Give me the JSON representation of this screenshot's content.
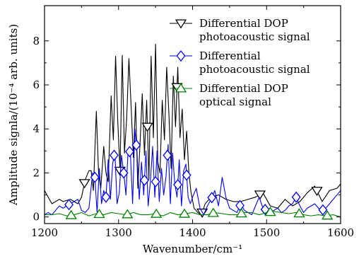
{
  "chart_data": {
    "type": "line",
    "xlabel": "Wavenumber/cm⁻¹",
    "ylabel": "Amplitude signla/(10⁻⁴ arb. units)",
    "xlim": [
      1200,
      1600
    ],
    "ylim": [
      -0.3,
      9.6
    ],
    "xticks": [
      1200,
      1300,
      1400,
      1500,
      1600
    ],
    "yticks": [
      0,
      2,
      4,
      6,
      8
    ],
    "grid": false,
    "legend": {
      "position": "top-right"
    },
    "series": [
      {
        "name": "Differential DOP photoacoustic signal",
        "legend_lines": [
          "Differential DOP",
          "photoacoustic signal"
        ],
        "color": "#000000",
        "marker": "triangle-down",
        "x": [
          1200,
          1205,
          1210,
          1215,
          1220,
          1225,
          1230,
          1235,
          1240,
          1245,
          1250,
          1255,
          1260,
          1263,
          1266,
          1270,
          1273,
          1276,
          1280,
          1283,
          1286,
          1290,
          1293,
          1296,
          1299,
          1302,
          1305,
          1308,
          1311,
          1314,
          1317,
          1320,
          1323,
          1326,
          1329,
          1332,
          1335,
          1338,
          1341,
          1344,
          1347,
          1350,
          1353,
          1356,
          1359,
          1362,
          1365,
          1368,
          1371,
          1374,
          1377,
          1380,
          1383,
          1386,
          1389,
          1392,
          1395,
          1398,
          1402,
          1407,
          1412,
          1417,
          1425,
          1435,
          1445,
          1455,
          1465,
          1475,
          1485,
          1495,
          1505,
          1515,
          1525,
          1535,
          1545,
          1555,
          1565,
          1575,
          1585,
          1595,
          1600
        ],
        "y": [
          1.2,
          0.9,
          0.6,
          0.7,
          0.8,
          0.7,
          0.75,
          0.8,
          0.7,
          0.6,
          0.9,
          1.7,
          2.1,
          2.1,
          1.2,
          4.8,
          2.0,
          1.3,
          3.2,
          2.0,
          1.6,
          5.5,
          3.5,
          7.3,
          4.3,
          2.1,
          7.35,
          2.9,
          4.5,
          7.2,
          5.0,
          2.7,
          5.2,
          1.3,
          3.3,
          5.6,
          2.8,
          5.3,
          1.7,
          7.3,
          3.6,
          7.85,
          2.5,
          2.0,
          5.3,
          3.5,
          6.8,
          4.7,
          2.2,
          6.4,
          4.1,
          6.8,
          3.6,
          4.9,
          2.6,
          3.9,
          2.0,
          1.1,
          0.4,
          0.2,
          0.1,
          0.6,
          0.9,
          1.0,
          0.8,
          0.7,
          0.7,
          0.8,
          0.9,
          1.1,
          0.5,
          0.4,
          0.8,
          0.5,
          0.7,
          1.1,
          1.4,
          0.7,
          1.2,
          1.3,
          1.5
        ],
        "marker_x": [
          1254,
          1302,
          1339,
          1379,
          1413,
          1491,
          1568
        ]
      },
      {
        "name": "Differential photoacoustic signal",
        "legend_lines": [
          "Differential",
          "photoacoustic signal"
        ],
        "color": "#0000ff",
        "marker": "diamond",
        "x": [
          1200,
          1205,
          1210,
          1215,
          1220,
          1225,
          1230,
          1235,
          1240,
          1245,
          1250,
          1255,
          1260,
          1265,
          1268,
          1271,
          1274,
          1277,
          1280,
          1283,
          1286,
          1289,
          1292,
          1295,
          1298,
          1301,
          1304,
          1307,
          1310,
          1313,
          1316,
          1319,
          1322,
          1325,
          1328,
          1331,
          1334,
          1337,
          1340,
          1343,
          1346,
          1349,
          1352,
          1355,
          1358,
          1361,
          1364,
          1367,
          1370,
          1373,
          1376,
          1379,
          1382,
          1385,
          1388,
          1391,
          1394,
          1397,
          1400,
          1405,
          1410,
          1415,
          1420,
          1425,
          1430,
          1435,
          1440,
          1445,
          1450,
          1455,
          1460,
          1465,
          1470,
          1475,
          1480,
          1485,
          1490,
          1495,
          1500,
          1505,
          1510,
          1515,
          1520,
          1525,
          1530,
          1535,
          1540,
          1545,
          1550,
          1555,
          1560,
          1565,
          1570,
          1575,
          1580,
          1585,
          1590,
          1595,
          1600
        ],
        "y": [
          0.1,
          0.2,
          0.1,
          0.3,
          0.5,
          0.4,
          0.5,
          0.6,
          0.7,
          0.8,
          0.3,
          0.2,
          0.4,
          2.0,
          1.8,
          0.2,
          2.2,
          0.6,
          1.2,
          0.9,
          2.6,
          0.8,
          2.4,
          3.0,
          0.6,
          1.1,
          2.8,
          2.0,
          1.0,
          3.1,
          2.9,
          0.6,
          4.0,
          2.9,
          0.8,
          2.5,
          1.0,
          3.0,
          0.5,
          1.6,
          3.2,
          0.9,
          3.0,
          0.7,
          2.2,
          1.0,
          1.8,
          3.3,
          0.6,
          2.9,
          1.5,
          0.9,
          2.6,
          0.5,
          2.1,
          2.4,
          0.9,
          0.6,
          0.9,
          1.3,
          0.4,
          0.1,
          0.5,
          0.8,
          1.2,
          0.5,
          1.8,
          0.9,
          0.4,
          0.3,
          0.2,
          0.6,
          0.3,
          0.2,
          0.1,
          0.5,
          0.9,
          0.4,
          0.3,
          0.2,
          0.3,
          0.4,
          0.2,
          0.3,
          0.5,
          0.6,
          0.9,
          0.5,
          0.2,
          0.4,
          0.5,
          0.6,
          0.4,
          0.3,
          0.4,
          0.6,
          0.8,
          1.0,
          1.2
        ],
        "marker_x": [
          1233,
          1268,
          1283,
          1294,
          1307,
          1315,
          1324,
          1335,
          1350,
          1366,
          1380,
          1392,
          1426,
          1464,
          1498,
          1540,
          1576
        ]
      },
      {
        "name": "Differential DOP optical signal",
        "legend_lines": [
          "Differential DOP",
          "optical signal"
        ],
        "color": "#008000",
        "marker": "triangle-up",
        "x": [
          1200,
          1210,
          1220,
          1230,
          1240,
          1250,
          1260,
          1270,
          1280,
          1290,
          1300,
          1310,
          1320,
          1330,
          1340,
          1350,
          1360,
          1370,
          1380,
          1390,
          1400,
          1410,
          1420,
          1430,
          1440,
          1450,
          1460,
          1470,
          1480,
          1490,
          1500,
          1510,
          1520,
          1530,
          1540,
          1550,
          1560,
          1570,
          1580,
          1590,
          1600
        ],
        "y": [
          0.1,
          0.1,
          0.15,
          0.05,
          0.1,
          0.2,
          0.05,
          0.15,
          0.1,
          0.2,
          0.15,
          0.1,
          0.2,
          0.1,
          0.1,
          0.15,
          0.05,
          0.2,
          0.1,
          0.15,
          0.2,
          0.1,
          0.1,
          0.2,
          0.15,
          0.1,
          0.1,
          0.2,
          0.2,
          0.1,
          0.2,
          0.25,
          0.2,
          0.15,
          0.2,
          0.1,
          0.05,
          0.1,
          0.05,
          0.1,
          0.0
        ],
        "marker_x": [
          1236,
          1274,
          1312,
          1351,
          1389,
          1428,
          1466,
          1505,
          1544,
          1582
        ]
      }
    ]
  }
}
